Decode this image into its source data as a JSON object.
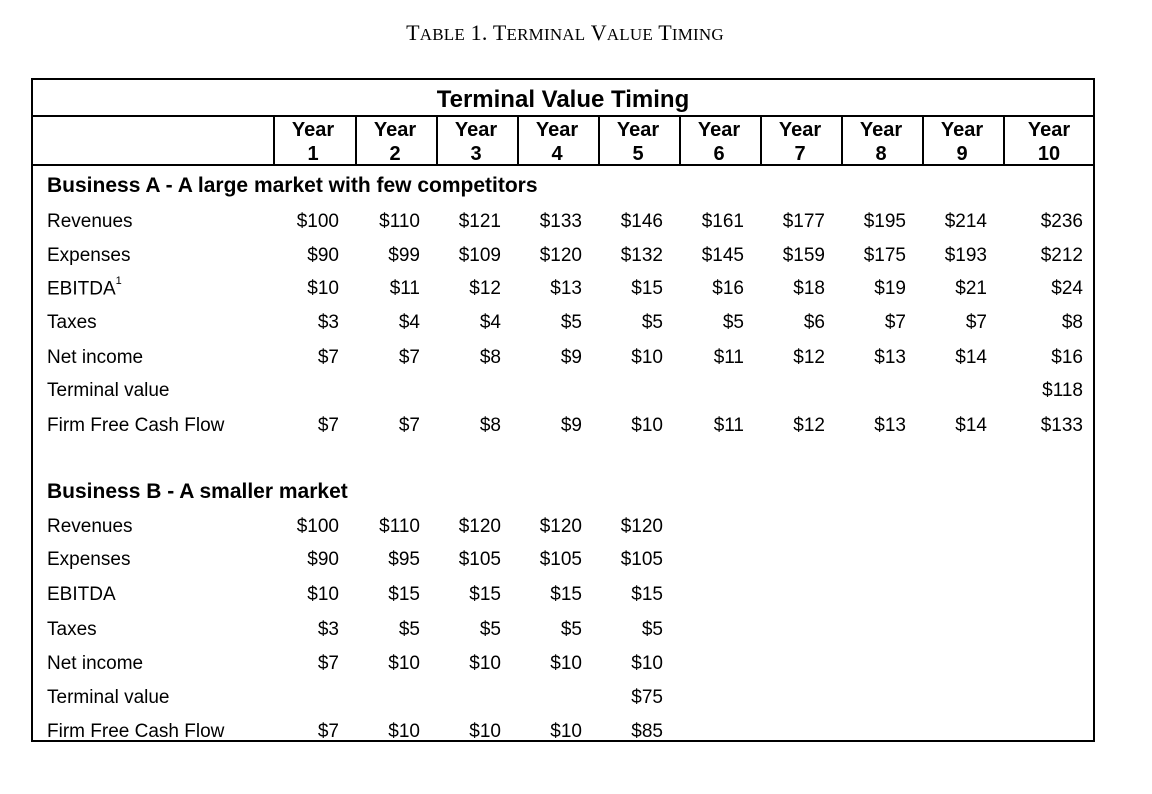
{
  "caption": {
    "first": "T",
    "rest": "ABLE",
    "num": "1.",
    "w1a": "T",
    "w1b": "ERMINAL",
    "w2a": "V",
    "w2b": "ALUE",
    "w3a": "T",
    "w3b": "IMING"
  },
  "table": {
    "title": "Terminal Value Timing",
    "years": [
      {
        "top": "Year",
        "bottom": "1"
      },
      {
        "top": "Year",
        "bottom": "2"
      },
      {
        "top": "Year",
        "bottom": "3"
      },
      {
        "top": "Year",
        "bottom": "4"
      },
      {
        "top": "Year",
        "bottom": "5"
      },
      {
        "top": "Year",
        "bottom": "6"
      },
      {
        "top": "Year",
        "bottom": "7"
      },
      {
        "top": "Year",
        "bottom": "8"
      },
      {
        "top": "Year",
        "bottom": "9"
      },
      {
        "top": "Year",
        "bottom": "10"
      }
    ],
    "sections": [
      {
        "title": "Business A - A large market with few competitors",
        "rows": [
          {
            "label": "Revenues",
            "values": [
              "$100",
              "$110",
              "$121",
              "$133",
              "$146",
              "$161",
              "$177",
              "$195",
              "$214",
              "$236"
            ]
          },
          {
            "label": "Expenses",
            "values": [
              "$90",
              "$99",
              "$109",
              "$120",
              "$132",
              "$145",
              "$159",
              "$175",
              "$193",
              "$212"
            ]
          },
          {
            "label": "EBITDA",
            "footnote": "1",
            "values": [
              "$10",
              "$11",
              "$12",
              "$13",
              "$15",
              "$16",
              "$18",
              "$19",
              "$21",
              "$24"
            ]
          },
          {
            "label": "Taxes",
            "values": [
              "$3",
              "$4",
              "$4",
              "$5",
              "$5",
              "$5",
              "$6",
              "$7",
              "$7",
              "$8"
            ]
          },
          {
            "label": "Net income",
            "values": [
              "$7",
              "$7",
              "$8",
              "$9",
              "$10",
              "$11",
              "$12",
              "$13",
              "$14",
              "$16"
            ]
          },
          {
            "label": "Terminal value",
            "values": [
              "",
              "",
              "",
              "",
              "",
              "",
              "",
              "",
              "",
              "$118"
            ]
          },
          {
            "label": "Firm Free Cash Flow",
            "values": [
              "$7",
              "$7",
              "$8",
              "$9",
              "$10",
              "$11",
              "$12",
              "$13",
              "$14",
              "$133"
            ]
          }
        ]
      },
      {
        "title": "Business B - A smaller market",
        "rows": [
          {
            "label": "Revenues",
            "values": [
              "$100",
              "$110",
              "$120",
              "$120",
              "$120"
            ]
          },
          {
            "label": "Expenses",
            "values": [
              "$90",
              "$95",
              "$105",
              "$105",
              "$105"
            ]
          },
          {
            "label": "EBITDA",
            "values": [
              "$10",
              "$15",
              "$15",
              "$15",
              "$15"
            ]
          },
          {
            "label": "Taxes",
            "values": [
              "$3",
              "$5",
              "$5",
              "$5",
              "$5"
            ]
          },
          {
            "label": "Net income",
            "values": [
              "$7",
              "$10",
              "$10",
              "$10",
              "$10"
            ]
          },
          {
            "label": "Terminal value",
            "values": [
              "",
              "",
              "",
              "",
              "$75"
            ]
          },
          {
            "label": "Firm Free Cash Flow",
            "values": [
              "$7",
              "$10",
              "$10",
              "$10",
              "$85"
            ]
          }
        ]
      }
    ]
  }
}
